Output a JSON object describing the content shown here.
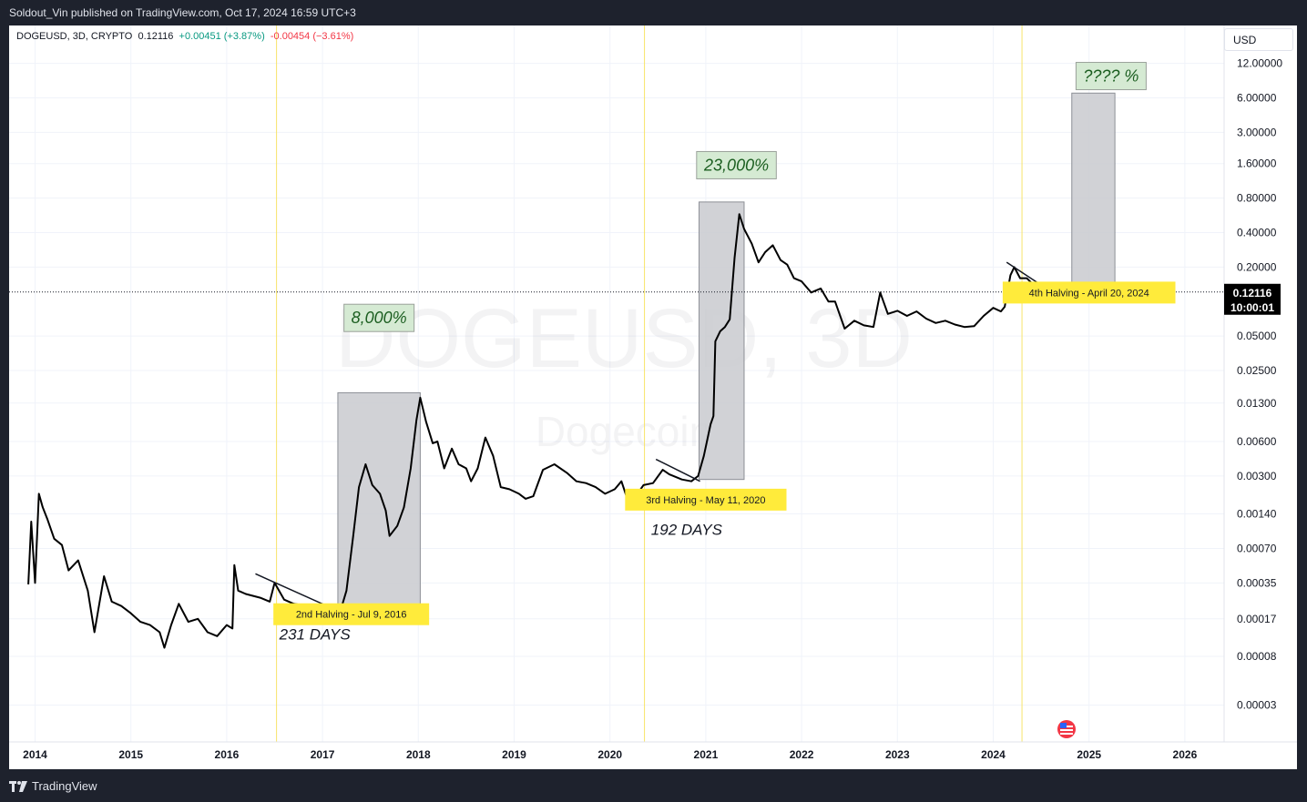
{
  "header": {
    "published": "Soldout_Vin published on TradingView.com, Oct 17, 2024 16:59 UTC+3"
  },
  "legend": {
    "symbol": "DOGEUSD, 3D, CRYPTO",
    "price": "0.12116",
    "change_pos": "+0.00451 (+3.87%)",
    "change_neg": "-0.00454 (−3.61%)"
  },
  "currency": "USD",
  "watermark": {
    "ticker": "DOGEUSD, 3D",
    "name": "Dogecoin"
  },
  "price_tag": {
    "value": "0.12116",
    "countdown": "10:00:01"
  },
  "footer": {
    "brand": "TradingView"
  },
  "colors": {
    "halving_line": "#f7e46a",
    "label_yellow": "#ffeb3b",
    "gain_box": "#d5ead3",
    "gain_text": "#1b5e20",
    "range_box": "#c9cacf"
  },
  "chart_data": {
    "type": "line",
    "scale": "log",
    "ylim": [
      2e-05,
      16
    ],
    "xlim": [
      2013.85,
      2026.4
    ],
    "y_ticks": [
      {
        "v": 12,
        "label": "12.00000"
      },
      {
        "v": 6,
        "label": "6.00000"
      },
      {
        "v": 3,
        "label": "3.00000"
      },
      {
        "v": 1.6,
        "label": "1.60000"
      },
      {
        "v": 0.8,
        "label": "0.80000"
      },
      {
        "v": 0.4,
        "label": "0.40000"
      },
      {
        "v": 0.2,
        "label": "0.20000"
      },
      {
        "v": 0.05,
        "label": "0.05000"
      },
      {
        "v": 0.025,
        "label": "0.02500"
      },
      {
        "v": 0.013,
        "label": "0.01300"
      },
      {
        "v": 0.006,
        "label": "0.00600"
      },
      {
        "v": 0.003,
        "label": "0.00300"
      },
      {
        "v": 0.0014,
        "label": "0.00140"
      },
      {
        "v": 0.0007,
        "label": "0.00070"
      },
      {
        "v": 0.00035,
        "label": "0.00035"
      },
      {
        "v": 0.00017,
        "label": "0.00017"
      },
      {
        "v": 8e-05,
        "label": "0.00008"
      },
      {
        "v": 3e-05,
        "label": "0.00003"
      }
    ],
    "x_ticks": [
      {
        "v": 2014,
        "label": "2014"
      },
      {
        "v": 2015,
        "label": "2015"
      },
      {
        "v": 2016,
        "label": "2016"
      },
      {
        "v": 2017,
        "label": "2017"
      },
      {
        "v": 2018,
        "label": "2018"
      },
      {
        "v": 2019,
        "label": "2019"
      },
      {
        "v": 2020,
        "label": "2020"
      },
      {
        "v": 2021,
        "label": "2021"
      },
      {
        "v": 2022,
        "label": "2022"
      },
      {
        "v": 2023,
        "label": "2023"
      },
      {
        "v": 2024,
        "label": "2024"
      },
      {
        "v": 2025,
        "label": "2025"
      },
      {
        "v": 2026,
        "label": "2026"
      }
    ],
    "current_price": 0.12116,
    "series": [
      {
        "points": [
          [
            2013.93,
            0.00034
          ],
          [
            2013.96,
            0.0012
          ],
          [
            2014.0,
            0.00035
          ],
          [
            2014.04,
            0.0021
          ],
          [
            2014.08,
            0.0016
          ],
          [
            2014.13,
            0.00125
          ],
          [
            2014.2,
            0.00085
          ],
          [
            2014.28,
            0.00075
          ],
          [
            2014.35,
            0.00045
          ],
          [
            2014.45,
            0.00055
          ],
          [
            2014.55,
            0.0003
          ],
          [
            2014.62,
            0.00013
          ],
          [
            2014.72,
            0.0004
          ],
          [
            2014.8,
            0.00024
          ],
          [
            2014.9,
            0.00022
          ],
          [
            2015.0,
            0.00019
          ],
          [
            2015.1,
            0.00016
          ],
          [
            2015.2,
            0.00015
          ],
          [
            2015.3,
            0.00013
          ],
          [
            2015.35,
            9.5e-05
          ],
          [
            2015.42,
            0.00015
          ],
          [
            2015.5,
            0.00023
          ],
          [
            2015.6,
            0.00016
          ],
          [
            2015.7,
            0.00017
          ],
          [
            2015.8,
            0.00013
          ],
          [
            2015.9,
            0.00012
          ],
          [
            2016.0,
            0.00015
          ],
          [
            2016.06,
            0.00014
          ],
          [
            2016.08,
            0.0005
          ],
          [
            2016.12,
            0.0003
          ],
          [
            2016.2,
            0.00028
          ],
          [
            2016.35,
            0.00026
          ],
          [
            2016.45,
            0.00024
          ],
          [
            2016.5,
            0.00035
          ],
          [
            2016.6,
            0.00025
          ],
          [
            2016.7,
            0.00023
          ],
          [
            2016.85,
            0.00022
          ],
          [
            2016.98,
            0.00021
          ],
          [
            2017.1,
            0.0002
          ],
          [
            2017.18,
            0.00019
          ],
          [
            2017.25,
            0.0003
          ],
          [
            2017.32,
            0.0009
          ],
          [
            2017.38,
            0.0024
          ],
          [
            2017.45,
            0.0038
          ],
          [
            2017.52,
            0.0025
          ],
          [
            2017.6,
            0.0021
          ],
          [
            2017.66,
            0.0015
          ],
          [
            2017.7,
            0.0009
          ],
          [
            2017.78,
            0.0011
          ],
          [
            2017.85,
            0.0016
          ],
          [
            2017.92,
            0.0035
          ],
          [
            2017.98,
            0.0092
          ],
          [
            2018.02,
            0.0145
          ],
          [
            2018.08,
            0.009
          ],
          [
            2018.15,
            0.0058
          ],
          [
            2018.2,
            0.006
          ],
          [
            2018.27,
            0.0035
          ],
          [
            2018.35,
            0.0052
          ],
          [
            2018.42,
            0.0038
          ],
          [
            2018.5,
            0.0035
          ],
          [
            2018.55,
            0.0027
          ],
          [
            2018.62,
            0.0035
          ],
          [
            2018.7,
            0.0065
          ],
          [
            2018.78,
            0.0045
          ],
          [
            2018.86,
            0.0024
          ],
          [
            2018.95,
            0.0023
          ],
          [
            2019.05,
            0.0021
          ],
          [
            2019.12,
            0.0019
          ],
          [
            2019.2,
            0.002
          ],
          [
            2019.3,
            0.0034
          ],
          [
            2019.42,
            0.0038
          ],
          [
            2019.55,
            0.0032
          ],
          [
            2019.65,
            0.0027
          ],
          [
            2019.75,
            0.0026
          ],
          [
            2019.85,
            0.0024
          ],
          [
            2019.95,
            0.0021
          ],
          [
            2020.05,
            0.0023
          ],
          [
            2020.12,
            0.0027
          ],
          [
            2020.2,
            0.0017
          ],
          [
            2020.25,
            0.0019
          ],
          [
            2020.35,
            0.0025
          ],
          [
            2020.45,
            0.0026
          ],
          [
            2020.55,
            0.0034
          ],
          [
            2020.62,
            0.0031
          ],
          [
            2020.75,
            0.0028
          ],
          [
            2020.85,
            0.0027
          ],
          [
            2020.92,
            0.003
          ],
          [
            2020.98,
            0.0045
          ],
          [
            2021.05,
            0.0085
          ],
          [
            2021.08,
            0.01
          ],
          [
            2021.1,
            0.045
          ],
          [
            2021.15,
            0.055
          ],
          [
            2021.2,
            0.06
          ],
          [
            2021.25,
            0.07
          ],
          [
            2021.3,
            0.24
          ],
          [
            2021.35,
            0.58
          ],
          [
            2021.4,
            0.43
          ],
          [
            2021.48,
            0.32
          ],
          [
            2021.55,
            0.22
          ],
          [
            2021.62,
            0.27
          ],
          [
            2021.7,
            0.31
          ],
          [
            2021.78,
            0.23
          ],
          [
            2021.85,
            0.21
          ],
          [
            2021.92,
            0.16
          ],
          [
            2022.0,
            0.15
          ],
          [
            2022.1,
            0.12
          ],
          [
            2022.2,
            0.13
          ],
          [
            2022.28,
            0.1
          ],
          [
            2022.35,
            0.1
          ],
          [
            2022.45,
            0.058
          ],
          [
            2022.55,
            0.068
          ],
          [
            2022.65,
            0.062
          ],
          [
            2022.75,
            0.06
          ],
          [
            2022.82,
            0.12
          ],
          [
            2022.9,
            0.078
          ],
          [
            2023.0,
            0.083
          ],
          [
            2023.1,
            0.075
          ],
          [
            2023.2,
            0.082
          ],
          [
            2023.3,
            0.071
          ],
          [
            2023.4,
            0.065
          ],
          [
            2023.5,
            0.068
          ],
          [
            2023.6,
            0.063
          ],
          [
            2023.7,
            0.06
          ],
          [
            2023.8,
            0.061
          ],
          [
            2023.9,
            0.075
          ],
          [
            2024.0,
            0.088
          ],
          [
            2024.08,
            0.082
          ],
          [
            2024.12,
            0.09
          ],
          [
            2024.18,
            0.17
          ],
          [
            2024.22,
            0.2
          ],
          [
            2024.28,
            0.16
          ],
          [
            2024.35,
            0.16
          ],
          [
            2024.42,
            0.14
          ],
          [
            2024.5,
            0.13
          ],
          [
            2024.58,
            0.1
          ],
          [
            2024.65,
            0.11
          ],
          [
            2024.7,
            0.12
          ],
          [
            2024.76,
            0.12116
          ]
        ]
      }
    ],
    "halvings": [
      2016.52,
      2020.36,
      2024.3
    ],
    "ranges": [
      {
        "x0": 2017.16,
        "x1": 2018.02,
        "y0": 0.00019,
        "y1": 0.016
      },
      {
        "x0": 2020.93,
        "x1": 2021.4,
        "y0": 0.0028,
        "y1": 0.74
      },
      {
        "x0": 2024.82,
        "x1": 2025.27,
        "y0": 0.12116,
        "y1": 6.6
      }
    ],
    "trendlines": [
      {
        "x0": 2016.3,
        "y0": 0.00042,
        "x1": 2017.28,
        "y1": 0.00018
      },
      {
        "x0": 2020.48,
        "y0": 0.0042,
        "x1": 2020.94,
        "y1": 0.0027
      },
      {
        "x0": 2024.14,
        "y0": 0.22,
        "x1": 2024.76,
        "y1": 0.1
      }
    ],
    "gain_labels": [
      {
        "text": "8,000%",
        "x": 2017.59,
        "y": 0.072
      },
      {
        "text": "23,000%",
        "x": 2021.32,
        "y": 1.55
      },
      {
        "text": "???? %",
        "x": 2025.23,
        "y": 9.3
      }
    ],
    "halving_labels": [
      {
        "text": "2nd Halving - Jul 9, 2016",
        "x": 2017.3,
        "y": 0.00019
      },
      {
        "text": "3rd Halving - May 11, 2020",
        "x": 2021.0,
        "y": 0.0019
      },
      {
        "text": "4th Halving - April 20, 2024",
        "x": 2025.0,
        "y": 0.122
      }
    ],
    "day_labels": [
      {
        "text": "231 DAYS",
        "x": 2016.92,
        "y": 0.000112
      },
      {
        "text": "192 DAYS",
        "x": 2020.8,
        "y": 0.00092
      }
    ]
  }
}
